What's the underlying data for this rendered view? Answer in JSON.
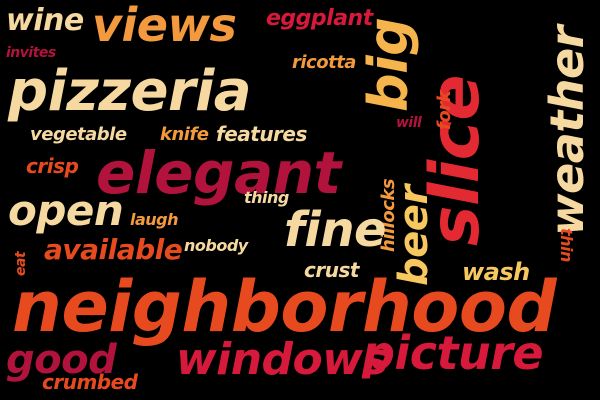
{
  "words": {
    "wine": {
      "text": "wine",
      "color": "#f6d9a1"
    },
    "invites": {
      "text": "invites",
      "color": "#b1133d"
    },
    "views": {
      "text": "views",
      "color": "#f39a3e"
    },
    "eggplant": {
      "text": "eggplant",
      "color": "#d7193b"
    },
    "ricotta": {
      "text": "ricotta",
      "color": "#f39a3e"
    },
    "pizzeria": {
      "text": "pizzeria",
      "color": "#f6d9a1"
    },
    "big": {
      "text": "big",
      "color": "#f6b44c"
    },
    "slice": {
      "text": "slice",
      "color": "#e32931"
    },
    "weather": {
      "text": "weather",
      "color": "#f6d9a1"
    },
    "fork": {
      "text": "fork",
      "color": "#e84a20"
    },
    "will": {
      "text": "will",
      "color": "#b1133d"
    },
    "vegetable": {
      "text": "vegetable",
      "color": "#f6d9a1"
    },
    "knife": {
      "text": "knife",
      "color": "#f39a3e"
    },
    "features": {
      "text": "features",
      "color": "#f6d9a1"
    },
    "crisp": {
      "text": "crisp",
      "color": "#e84a20"
    },
    "elegant": {
      "text": "elegant",
      "color": "#b1133d"
    },
    "thing": {
      "text": "thing",
      "color": "#f6d9a1"
    },
    "hillocks": {
      "text": "hillocks",
      "color": "#f39a3e"
    },
    "beer": {
      "text": "beer",
      "color": "#f6c85f"
    },
    "open": {
      "text": "open",
      "color": "#f6d9a1"
    },
    "laugh": {
      "text": "laugh",
      "color": "#f39a3e"
    },
    "fine": {
      "text": "fine",
      "color": "#f6d9a1"
    },
    "thin": {
      "text": "thin",
      "color": "#e84a20"
    },
    "eat": {
      "text": "eat",
      "color": "#e84a20"
    },
    "available": {
      "text": "available",
      "color": "#e84a20"
    },
    "nobody": {
      "text": "nobody",
      "color": "#f6d9a1"
    },
    "crust": {
      "text": "crust",
      "color": "#f6d9a1"
    },
    "wash": {
      "text": "wash",
      "color": "#f6c85f"
    },
    "neighborhood": {
      "text": "neighborhood",
      "color": "#e84a20"
    },
    "good": {
      "text": "good",
      "color": "#b1133d"
    },
    "windows": {
      "text": "windows",
      "color": "#d7193b"
    },
    "picture": {
      "text": "picture",
      "color": "#d7193b"
    },
    "crumbed": {
      "text": "crumbed",
      "color": "#e84a20"
    }
  }
}
